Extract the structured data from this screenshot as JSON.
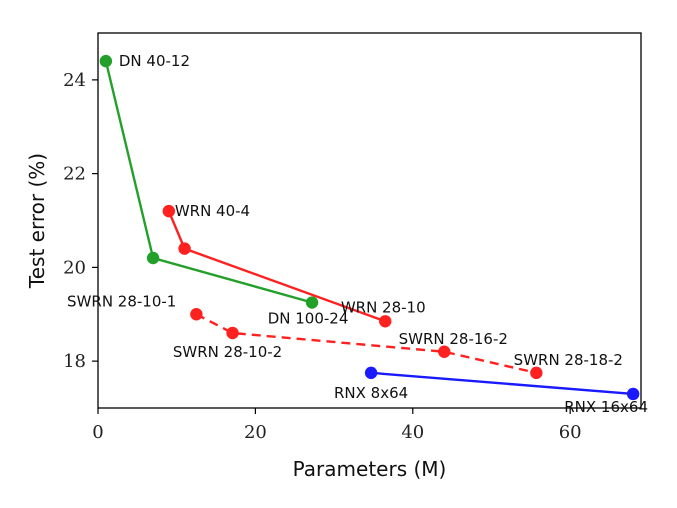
{
  "chart_data": {
    "type": "line",
    "xlabel": "Parameters (M)",
    "ylabel": "Test error (%)",
    "xlim": [
      0,
      69
    ],
    "ylim": [
      17.0,
      25.0
    ],
    "xticks": [
      0,
      20,
      40,
      60
    ],
    "yticks": [
      18,
      20,
      22,
      24
    ],
    "grid": false,
    "legend": "none",
    "series": [
      {
        "color": "#22a02a",
        "dashed": false,
        "points": [
          {
            "x": 1.0,
            "y": 24.4,
            "label": "DN 40-12"
          },
          {
            "x": 7.0,
            "y": 20.2,
            "label": ""
          },
          {
            "x": 27.2,
            "y": 19.25,
            "label": "DN 100-24"
          }
        ]
      },
      {
        "color": "#ff2020",
        "dashed": false,
        "points": [
          {
            "x": 9.0,
            "y": 21.2,
            "label": "WRN 40-4"
          },
          {
            "x": 11.0,
            "y": 20.4,
            "label": ""
          },
          {
            "x": 36.5,
            "y": 18.85,
            "label": "WRN 28-10"
          }
        ]
      },
      {
        "color": "#ff2020",
        "dashed": true,
        "points": [
          {
            "x": 12.5,
            "y": 19.0,
            "label": "SWRN 28-10-1"
          },
          {
            "x": 17.1,
            "y": 18.6,
            "label": "SWRN 28-10-2"
          },
          {
            "x": 44.0,
            "y": 18.2,
            "label": "SWRN 28-16-2"
          },
          {
            "x": 55.7,
            "y": 17.75,
            "label": "SWRN 28-18-2"
          }
        ]
      },
      {
        "color": "#1a1aff",
        "dashed": false,
        "points": [
          {
            "x": 34.7,
            "y": 17.75,
            "label": "RNX 8x64"
          },
          {
            "x": 68.0,
            "y": 17.3,
            "label": "RNX 16x64"
          }
        ]
      }
    ]
  }
}
